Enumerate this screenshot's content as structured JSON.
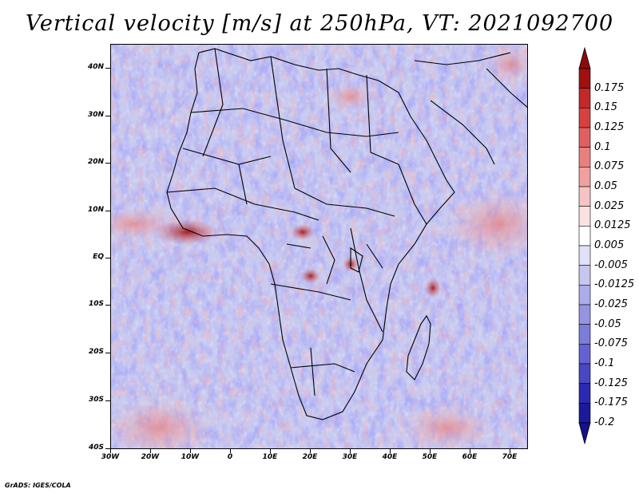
{
  "title": "Vertical velocity [m/s] at 250hPa, VT: 2021092700",
  "y_axis_labels": [
    "40N",
    "30N",
    "20N",
    "10N",
    "EQ",
    "10S",
    "20S",
    "30S",
    "40S"
  ],
  "x_axis_labels": [
    "30W",
    "20W",
    "10W",
    "0",
    "10E",
    "20E",
    "30E",
    "40E",
    "50E",
    "60E",
    "70E"
  ],
  "colorbar": {
    "levels": [
      "0.175",
      "0.15",
      "0.125",
      "0.1",
      "0.075",
      "0.05",
      "0.025",
      "0.0125",
      "0.005",
      "-0.005",
      "-0.0125",
      "-0.025",
      "-0.05",
      "-0.075",
      "-0.1",
      "-0.125",
      "-0.175",
      "-0.2"
    ],
    "colors": [
      "#a01010",
      "#c42828",
      "#d84040",
      "#e06060",
      "#e88080",
      "#f0a0a0",
      "#f6c4c4",
      "#fbe2e2",
      "#ffffff",
      "#e0e0f6",
      "#c6c6ee",
      "#acacea",
      "#9494e2",
      "#7c7cda",
      "#6262d0",
      "#4848c4",
      "#2a2ab0",
      "#1a1a9a"
    ],
    "top_arrow_color": "#8c0a0a",
    "bottom_arrow_color": "#12128a"
  },
  "footer": "GrADS: IGES/COLA"
}
